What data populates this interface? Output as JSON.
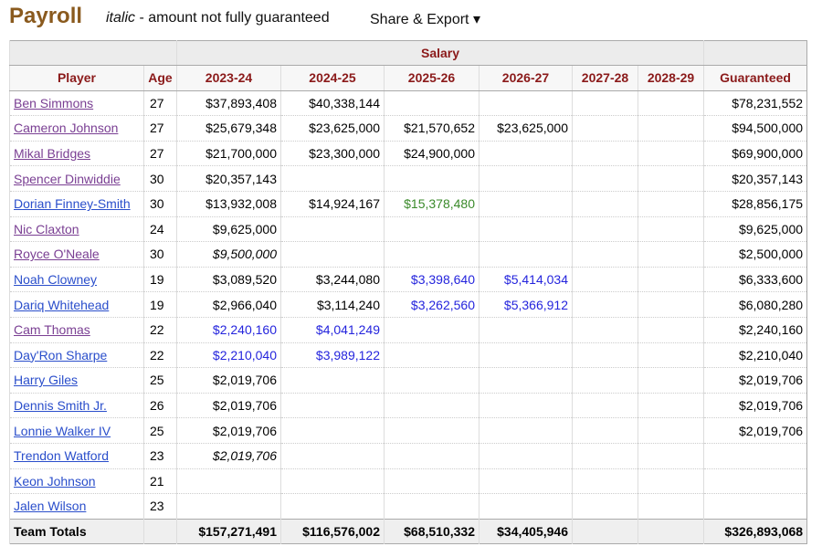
{
  "header": {
    "title": "Payroll",
    "legend_italic": "italic",
    "legend_text": "- amount not fully guaranteed",
    "share_export": "Share & Export ▾"
  },
  "table": {
    "group_header": "Salary",
    "columns": [
      "Player",
      "Age",
      "2023-24",
      "2024-25",
      "2025-26",
      "2026-27",
      "2027-28",
      "2028-29",
      "Guaranteed"
    ],
    "rows": [
      {
        "player": "Ben Simmons",
        "visited": true,
        "age": 27,
        "salaries": [
          "$37,893,408",
          "$40,338,144",
          null,
          null,
          null,
          null
        ],
        "guaranteed": "$78,231,552"
      },
      {
        "player": "Cameron Johnson",
        "visited": true,
        "age": 27,
        "salaries": [
          "$25,679,348",
          "$23,625,000",
          "$21,570,652",
          "$23,625,000",
          null,
          null
        ],
        "guaranteed": "$94,500,000"
      },
      {
        "player": "Mikal Bridges",
        "visited": true,
        "age": 27,
        "salaries": [
          "$21,700,000",
          "$23,300,000",
          "$24,900,000",
          null,
          null,
          null
        ],
        "guaranteed": "$69,900,000"
      },
      {
        "player": "Spencer Dinwiddie",
        "visited": true,
        "age": 30,
        "salaries": [
          "$20,357,143",
          null,
          null,
          null,
          null,
          null
        ],
        "guaranteed": "$20,357,143"
      },
      {
        "player": "Dorian Finney-Smith",
        "visited": false,
        "age": 30,
        "salaries": [
          "$13,932,008",
          "$14,924,167",
          {
            "text": "$15,378,480",
            "style": "player-option"
          },
          null,
          null,
          null
        ],
        "guaranteed": "$28,856,175"
      },
      {
        "player": "Nic Claxton",
        "visited": true,
        "age": 24,
        "salaries": [
          "$9,625,000",
          null,
          null,
          null,
          null,
          null
        ],
        "guaranteed": "$9,625,000"
      },
      {
        "player": "Royce O'Neale",
        "visited": true,
        "age": 30,
        "salaries": [
          {
            "text": "$9,500,000",
            "style": "italic"
          },
          null,
          null,
          null,
          null,
          null
        ],
        "guaranteed": "$2,500,000"
      },
      {
        "player": "Noah Clowney",
        "visited": false,
        "age": 19,
        "salaries": [
          "$3,089,520",
          "$3,244,080",
          {
            "text": "$3,398,640",
            "style": "team-option"
          },
          {
            "text": "$5,414,034",
            "style": "team-option"
          },
          null,
          null
        ],
        "guaranteed": "$6,333,600"
      },
      {
        "player": "Dariq Whitehead",
        "visited": false,
        "age": 19,
        "salaries": [
          "$2,966,040",
          "$3,114,240",
          {
            "text": "$3,262,560",
            "style": "team-option"
          },
          {
            "text": "$5,366,912",
            "style": "team-option"
          },
          null,
          null
        ],
        "guaranteed": "$6,080,280"
      },
      {
        "player": "Cam Thomas",
        "visited": true,
        "age": 22,
        "salaries": [
          {
            "text": "$2,240,160",
            "style": "team-option"
          },
          {
            "text": "$4,041,249",
            "style": "team-option"
          },
          null,
          null,
          null,
          null
        ],
        "guaranteed": "$2,240,160"
      },
      {
        "player": "Day'Ron Sharpe",
        "visited": false,
        "age": 22,
        "salaries": [
          {
            "text": "$2,210,040",
            "style": "team-option"
          },
          {
            "text": "$3,989,122",
            "style": "team-option"
          },
          null,
          null,
          null,
          null
        ],
        "guaranteed": "$2,210,040"
      },
      {
        "player": "Harry Giles",
        "visited": false,
        "age": 25,
        "salaries": [
          "$2,019,706",
          null,
          null,
          null,
          null,
          null
        ],
        "guaranteed": "$2,019,706"
      },
      {
        "player": "Dennis Smith Jr.",
        "visited": false,
        "age": 26,
        "salaries": [
          "$2,019,706",
          null,
          null,
          null,
          null,
          null
        ],
        "guaranteed": "$2,019,706"
      },
      {
        "player": "Lonnie Walker IV",
        "visited": false,
        "age": 25,
        "salaries": [
          "$2,019,706",
          null,
          null,
          null,
          null,
          null
        ],
        "guaranteed": "$2,019,706"
      },
      {
        "player": "Trendon Watford",
        "visited": false,
        "age": 23,
        "salaries": [
          {
            "text": "$2,019,706",
            "style": "italic"
          },
          null,
          null,
          null,
          null,
          null
        ],
        "guaranteed": null
      },
      {
        "player": "Keon Johnson",
        "visited": false,
        "age": 21,
        "salaries": [
          null,
          null,
          null,
          null,
          null,
          null
        ],
        "guaranteed": null
      },
      {
        "player": "Jalen Wilson",
        "visited": false,
        "age": 23,
        "salaries": [
          null,
          null,
          null,
          null,
          null,
          null
        ],
        "guaranteed": null
      }
    ],
    "totals": {
      "label": "Team Totals",
      "salaries": [
        "$157,271,491",
        "$116,576,002",
        "$68,510,332",
        "$34,405,946",
        null,
        null
      ],
      "guaranteed": "$326,893,068"
    }
  }
}
